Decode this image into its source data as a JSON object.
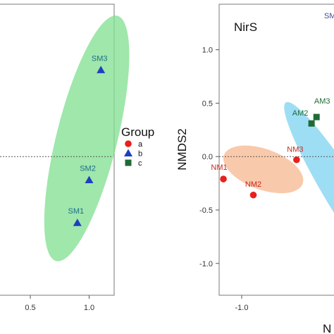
{
  "chart_data": [
    {
      "type": "scatter",
      "title": "",
      "xlabel": "",
      "ylabel": "",
      "xlim": [
        0.0,
        1.2
      ],
      "ylim": [
        -1.45,
        1.45
      ],
      "x_ticks": [
        0.5,
        1.0
      ],
      "x_tick_labels": [
        "0.5",
        "1.0"
      ],
      "y_ticks": [],
      "zero_line": 0,
      "grid": true,
      "points": [
        {
          "label": "SM3",
          "group": "b",
          "x": 1.1,
          "y": 0.81
        },
        {
          "label": "SM2",
          "group": "b",
          "x": 1.0,
          "y": -0.22
        },
        {
          "label": "SM1",
          "group": "b",
          "x": 0.9,
          "y": -0.62
        }
      ],
      "ellipses": [
        {
          "group": "b",
          "color": "#7fdf8f",
          "cx": 0.98,
          "cy": 0.17,
          "rx": 1.18,
          "ry": 0.27,
          "angle_deg": -76
        }
      ]
    },
    {
      "type": "scatter",
      "title": "NirS",
      "xlabel": "N",
      "ylabel": "NMDS2",
      "xlim": [
        -1.3,
        -0.2
      ],
      "ylim": [
        -1.45,
        1.45
      ],
      "x_ticks": [
        -1.0
      ],
      "x_tick_labels": [
        "-1.0"
      ],
      "y_ticks": [
        1.0,
        0.5,
        0.0,
        -0.5,
        -1.0
      ],
      "y_tick_labels": [
        "1.0",
        "0.5",
        "0.0",
        "-0.5",
        "-1.0"
      ],
      "zero_line": 0,
      "grid": true,
      "corner_label": "SM",
      "points": [
        {
          "label": "NM1",
          "group": "a",
          "x": -1.11,
          "y": -0.21
        },
        {
          "label": "NM2",
          "group": "a",
          "x": -0.93,
          "y": -0.36
        },
        {
          "label": "NM3",
          "group": "a",
          "x": -0.67,
          "y": -0.03
        },
        {
          "label": "AM2",
          "group": "c",
          "x": -0.58,
          "y": 0.31
        },
        {
          "label": "AM3",
          "group": "c",
          "x": -0.55,
          "y": 0.37
        }
      ],
      "ellipses": [
        {
          "group": "a",
          "color": "#f7b78f",
          "cx": -0.87,
          "cy": -0.12,
          "rx": 0.33,
          "ry": 0.16,
          "angle_deg": 20
        },
        {
          "group": "b",
          "color": "#7dd3f2",
          "cx": -0.35,
          "cy": -0.45,
          "rx": 0.95,
          "ry": 0.14,
          "angle_deg": 58
        }
      ]
    }
  ],
  "legend": {
    "title": "Group",
    "items": [
      {
        "label": "a",
        "color": "#e8201c",
        "shape": "circle"
      },
      {
        "label": "b",
        "color": "#1f3fbf",
        "shape": "triangle"
      },
      {
        "label": "c",
        "color": "#1e6b35",
        "shape": "square"
      }
    ]
  },
  "colors": {
    "a": "#e8201c",
    "b": "#1f3fbf",
    "c": "#1e6b35",
    "label_a": "#c8271f",
    "label_b": "#1e6c8c",
    "label_c": "#1e6b35"
  }
}
